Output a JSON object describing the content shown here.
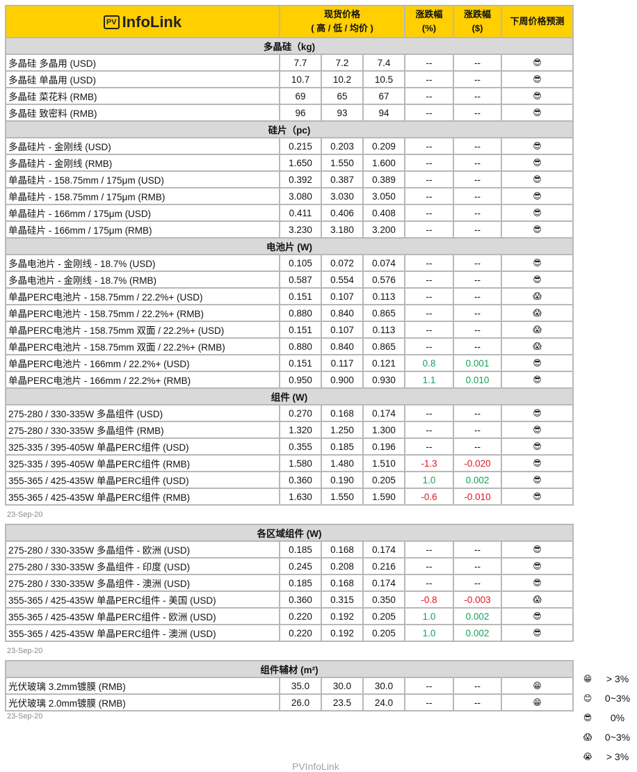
{
  "header": {
    "logo_pv": "PV",
    "logo_text": "InfoLink",
    "price_l1": "现货价格",
    "price_l2": "( 高 / 低 / 均价 )",
    "pct_l1": "涨跌幅",
    "pct_l2": "(%)",
    "usd_l1": "涨跌幅",
    "usd_l2": "($)",
    "forecast": "下周价格预测"
  },
  "colors": {
    "header_bg": "#ffcf00",
    "section_bg": "#d9d9d9",
    "up": "#14a05a",
    "down": "#e0141e"
  },
  "tables": [
    {
      "sections": [
        {
          "title": "多晶硅（kg)",
          "rows": [
            [
              "多晶硅 多晶用 (USD)",
              "7.7",
              "7.2",
              "7.4",
              "--",
              "--",
              "😎"
            ],
            [
              "多晶硅 单晶用 (USD)",
              "10.7",
              "10.2",
              "10.5",
              "--",
              "--",
              "😎"
            ],
            [
              "多晶硅 菜花料 (RMB)",
              "69",
              "65",
              "67",
              "--",
              "--",
              "😎"
            ],
            [
              "多晶硅 致密料 (RMB)",
              "96",
              "93",
              "94",
              "--",
              "--",
              "😎"
            ]
          ]
        },
        {
          "title": "硅片（pc)",
          "rows": [
            [
              "多晶硅片 - 金刚线 (USD)",
              "0.215",
              "0.203",
              "0.209",
              "--",
              "--",
              "😎"
            ],
            [
              "多晶硅片 - 金刚线 (RMB)",
              "1.650",
              "1.550",
              "1.600",
              "--",
              "--",
              "😎"
            ],
            [
              "单晶硅片 - 158.75mm / 175μm (USD)",
              "0.392",
              "0.387",
              "0.389",
              "--",
              "--",
              "😎"
            ],
            [
              "单晶硅片 - 158.75mm / 175μm (RMB)",
              "3.080",
              "3.030",
              "3.050",
              "--",
              "--",
              "😎"
            ],
            [
              "单晶硅片 - 166mm / 175μm (USD)",
              "0.411",
              "0.406",
              "0.408",
              "--",
              "--",
              "😎"
            ],
            [
              "单晶硅片 - 166mm / 175μm (RMB)",
              "3.230",
              "3.180",
              "3.200",
              "--",
              "--",
              "😎"
            ]
          ]
        },
        {
          "title": "电池片 (W)",
          "rows": [
            [
              "多晶电池片 - 金刚线 - 18.7% (USD)",
              "0.105",
              "0.072",
              "0.074",
              "--",
              "--",
              "😎"
            ],
            [
              "多晶电池片 - 金刚线 - 18.7% (RMB)",
              "0.587",
              "0.554",
              "0.576",
              "--",
              "--",
              "😎"
            ],
            [
              "单晶PERC电池片 - 158.75mm / 22.2%+ (USD)",
              "0.151",
              "0.107",
              "0.113",
              "--",
              "--",
              "😱"
            ],
            [
              "单晶PERC电池片 - 158.75mm / 22.2%+ (RMB)",
              "0.880",
              "0.840",
              "0.865",
              "--",
              "--",
              "😱"
            ],
            [
              "单晶PERC电池片 - 158.75mm 双面 / 22.2%+ (USD)",
              "0.151",
              "0.107",
              "0.113",
              "--",
              "--",
              "😱"
            ],
            [
              "单晶PERC电池片 - 158.75mm 双面 / 22.2%+ (RMB)",
              "0.880",
              "0.840",
              "0.865",
              "--",
              "--",
              "😱"
            ],
            [
              "单晶PERC电池片 - 166mm / 22.2%+ (USD)",
              "0.151",
              "0.117",
              "0.121",
              "0.8",
              "0.001",
              "😎"
            ],
            [
              "单晶PERC电池片 - 166mm / 22.2%+ (RMB)",
              "0.950",
              "0.900",
              "0.930",
              "1.1",
              "0.010",
              "😎"
            ]
          ]
        },
        {
          "title": "组件 (W)",
          "rows": [
            [
              "275-280 / 330-335W 多晶组件 (USD)",
              "0.270",
              "0.168",
              "0.174",
              "--",
              "--",
              "😎"
            ],
            [
              "275-280 / 330-335W 多晶组件 (RMB)",
              "1.320",
              "1.250",
              "1.300",
              "--",
              "--",
              "😎"
            ],
            [
              "325-335 / 395-405W 单晶PERC组件 (USD)",
              "0.355",
              "0.185",
              "0.196",
              "--",
              "--",
              "😎"
            ],
            [
              "325-335 / 395-405W 单晶PERC组件 (RMB)",
              "1.580",
              "1.480",
              "1.510",
              "-1.3",
              "-0.020",
              "😎"
            ],
            [
              "355-365 / 425-435W 单晶PERC组件 (USD)",
              "0.360",
              "0.190",
              "0.205",
              "1.0",
              "0.002",
              "😎"
            ],
            [
              "355-365 / 425-435W 单晶PERC组件 (RMB)",
              "1.630",
              "1.550",
              "1.590",
              "-0.6",
              "-0.010",
              "😎"
            ]
          ]
        }
      ],
      "date": "23-Sep-20"
    },
    {
      "sections": [
        {
          "title": "各区域组件 (W)",
          "rows": [
            [
              "275-280 / 330-335W  多晶组件 - 欧洲 (USD)",
              "0.185",
              "0.168",
              "0.174",
              "--",
              "--",
              "😎"
            ],
            [
              "275-280 / 330-335W  多晶组件 - 印度 (USD)",
              "0.245",
              "0.208",
              "0.216",
              "--",
              "--",
              "😎"
            ],
            [
              "275-280 / 330-335W  多晶组件 - 澳洲 (USD)",
              "0.185",
              "0.168",
              "0.174",
              "--",
              "--",
              "😎"
            ],
            [
              "355-365 / 425-435W 单晶PERC组件 - 美国 (USD)",
              "0.360",
              "0.315",
              "0.350",
              "-0.8",
              "-0.003",
              "😱"
            ],
            [
              "355-365 / 425-435W 单晶PERC组件 - 欧洲 (USD)",
              "0.220",
              "0.192",
              "0.205",
              "1.0",
              "0.002",
              "😎"
            ],
            [
              "355-365 / 425-435W 单晶PERC组件 - 澳洲 (USD)",
              "0.220",
              "0.192",
              "0.205",
              "1.0",
              "0.002",
              "😎"
            ]
          ]
        }
      ],
      "date": "23-Sep-20"
    },
    {
      "sections": [
        {
          "title": "组件辅材 (m²)",
          "rows": [
            [
              "光伏玻璃 3.2mm镀膜 (RMB)",
              "35.0",
              "30.0",
              "30.0",
              "--",
              "--",
              "😁"
            ],
            [
              "光伏玻璃 2.0mm镀膜 (RMB)",
              "26.0",
              "23.5",
              "24.0",
              "--",
              "--",
              "😁"
            ]
          ]
        }
      ],
      "date": "23-Sep-20"
    }
  ],
  "legend": [
    {
      "icon": "😁",
      "label": "> 3%"
    },
    {
      "icon": "😊",
      "label": "0~3%"
    },
    {
      "icon": "😎",
      "label": "0%"
    },
    {
      "icon": "😱",
      "label": "0~3%"
    },
    {
      "icon": "😭",
      "label": "> 3%"
    }
  ],
  "watermark": "PVInfoLink"
}
